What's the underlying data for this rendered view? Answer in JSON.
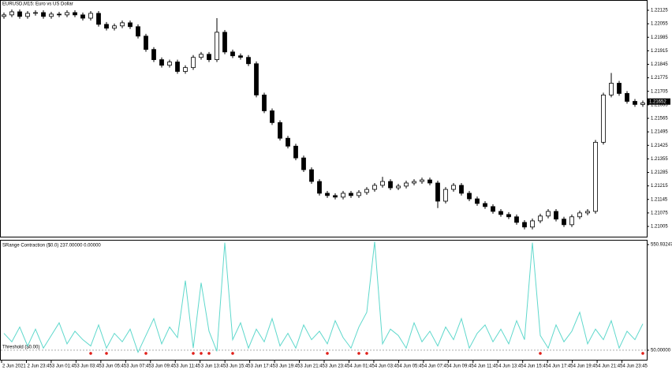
{
  "chart_data": [
    {
      "type": "candlestick",
      "title": "EURUSD,M15:  Euro vs US Dollar",
      "ylim": [
        1.20952,
        1.22174
      ],
      "yticks": [
        1.22125,
        1.22055,
        1.21985,
        1.21915,
        1.21845,
        1.21775,
        1.21705,
        1.21635,
        1.21565,
        1.21495,
        1.21425,
        1.21355,
        1.21285,
        1.21215,
        1.21145,
        1.21075,
        1.21005
      ],
      "current_price": 1.21652,
      "up_color": "#ffffff",
      "down_color": "#000000",
      "outline_color": "#000000",
      "candles": [
        [
          1.22093,
          1.22113,
          1.22081,
          1.22101
        ],
        [
          1.22101,
          1.22129,
          1.22089,
          1.22117
        ],
        [
          1.22117,
          1.22129,
          1.22081,
          1.22093
        ],
        [
          1.22093,
          1.22121,
          1.22081,
          1.22109
        ],
        [
          1.22109,
          1.22125,
          1.22097,
          1.22113
        ],
        [
          1.22113,
          1.22125,
          1.22081,
          1.22093
        ],
        [
          1.22093,
          1.22117,
          1.22081,
          1.22105
        ],
        [
          1.22105,
          1.22117,
          1.22089,
          1.22101
        ],
        [
          1.22101,
          1.22125,
          1.22089,
          1.22113
        ],
        [
          1.22113,
          1.22125,
          1.22089,
          1.22101
        ],
        [
          1.22101,
          1.22113,
          1.22072,
          1.22084
        ],
        [
          1.22084,
          1.22121,
          1.22072,
          1.22109
        ],
        [
          1.22109,
          1.22121,
          1.2204,
          1.22052
        ],
        [
          1.22052,
          1.22064,
          1.2202,
          1.22032
        ],
        [
          1.22032,
          1.22056,
          1.2202,
          1.22044
        ],
        [
          1.22044,
          1.22072,
          1.22032,
          1.2206
        ],
        [
          1.2206,
          1.22072,
          1.22028,
          1.2204
        ],
        [
          1.2204,
          1.22052,
          1.21979,
          1.21991
        ],
        [
          1.21991,
          1.22003,
          1.2191,
          1.21922
        ],
        [
          1.21922,
          1.21934,
          1.21857,
          1.21869
        ],
        [
          1.21869,
          1.21881,
          1.21828,
          1.2184
        ],
        [
          1.2184,
          1.21869,
          1.21828,
          1.21857
        ],
        [
          1.21857,
          1.21869,
          1.21796,
          1.21808
        ],
        [
          1.21808,
          1.2184,
          1.21796,
          1.21828
        ],
        [
          1.21828,
          1.21893,
          1.21816,
          1.21881
        ],
        [
          1.21881,
          1.21909,
          1.21869,
          1.21897
        ],
        [
          1.21897,
          1.21909,
          1.21857,
          1.21869
        ],
        [
          1.21869,
          1.22084,
          1.21857,
          1.22011
        ],
        [
          1.22011,
          1.22023,
          1.21897,
          1.21909
        ],
        [
          1.21909,
          1.21921,
          1.21877,
          1.21889
        ],
        [
          1.21889,
          1.21901,
          1.21869,
          1.21881
        ],
        [
          1.21881,
          1.21893,
          1.21836,
          1.21848
        ],
        [
          1.21848,
          1.2186,
          1.21674,
          1.21686
        ],
        [
          1.21686,
          1.21698,
          1.21592,
          1.21604
        ],
        [
          1.21604,
          1.21616,
          1.21531,
          1.21543
        ],
        [
          1.21543,
          1.21555,
          1.2145,
          1.21462
        ],
        [
          1.21462,
          1.21474,
          1.21409,
          1.21421
        ],
        [
          1.21421,
          1.21433,
          1.21348,
          1.2136
        ],
        [
          1.2136,
          1.21372,
          1.21287,
          1.21299
        ],
        [
          1.21299,
          1.21311,
          1.21226,
          1.21238
        ],
        [
          1.21238,
          1.2125,
          1.21165,
          1.21177
        ],
        [
          1.21177,
          1.21189,
          1.21153,
          1.21165
        ],
        [
          1.21165,
          1.21177,
          1.21145,
          1.21157
        ],
        [
          1.21157,
          1.21189,
          1.21145,
          1.21177
        ],
        [
          1.21177,
          1.21189,
          1.21153,
          1.21165
        ],
        [
          1.21165,
          1.21193,
          1.21153,
          1.21181
        ],
        [
          1.21181,
          1.21209,
          1.21169,
          1.21197
        ],
        [
          1.21197,
          1.2123,
          1.21185,
          1.21218
        ],
        [
          1.21218,
          1.21262,
          1.21206,
          1.21238
        ],
        [
          1.21238,
          1.2125,
          1.21193,
          1.21205
        ],
        [
          1.21205,
          1.21226,
          1.21193,
          1.21214
        ],
        [
          1.21214,
          1.21242,
          1.21202,
          1.2123
        ],
        [
          1.2123,
          1.2125,
          1.21218,
          1.21238
        ],
        [
          1.21238,
          1.21258,
          1.21226,
          1.21246
        ],
        [
          1.21246,
          1.21258,
          1.21218,
          1.2123
        ],
        [
          1.2123,
          1.21242,
          1.211,
          1.21136
        ],
        [
          1.21136,
          1.21209,
          1.21124,
          1.21197
        ],
        [
          1.21197,
          1.2123,
          1.21185,
          1.21218
        ],
        [
          1.21218,
          1.2123,
          1.21165,
          1.21177
        ],
        [
          1.21177,
          1.21189,
          1.21136,
          1.21148
        ],
        [
          1.21148,
          1.2116,
          1.21112,
          1.21124
        ],
        [
          1.21124,
          1.21136,
          1.21096,
          1.21108
        ],
        [
          1.21108,
          1.2112,
          1.21071,
          1.21083
        ],
        [
          1.21083,
          1.21095,
          1.21055,
          1.21067
        ],
        [
          1.21067,
          1.21079,
          1.21043,
          1.21055
        ],
        [
          1.21055,
          1.21067,
          1.21014,
          1.21026
        ],
        [
          1.21026,
          1.21038,
          1.2099,
          1.21002
        ],
        [
          1.21002,
          1.21046,
          1.2099,
          1.21034
        ],
        [
          1.21034,
          1.21071,
          1.21022,
          1.21059
        ],
        [
          1.21059,
          1.21095,
          1.21047,
          1.21083
        ],
        [
          1.21083,
          1.21095,
          1.21031,
          1.21043
        ],
        [
          1.21043,
          1.21055,
          1.21002,
          1.21014
        ],
        [
          1.21014,
          1.21067,
          1.21002,
          1.21055
        ],
        [
          1.21055,
          1.21087,
          1.21043,
          1.21075
        ],
        [
          1.21075,
          1.21095,
          1.21063,
          1.21083
        ],
        [
          1.21083,
          1.21453,
          1.21071,
          1.21441
        ],
        [
          1.21441,
          1.21698,
          1.21429,
          1.21686
        ],
        [
          1.21686,
          1.218,
          1.21674,
          1.21747
        ],
        [
          1.21747,
          1.21759,
          1.21682,
          1.21694
        ],
        [
          1.21694,
          1.21706,
          1.21641,
          1.21653
        ],
        [
          1.21653,
          1.21665,
          1.21625,
          1.21637
        ],
        [
          1.21637,
          1.21657,
          1.21625,
          1.21645
        ]
      ]
    },
    {
      "type": "line",
      "title": "SRange Contraction ($0.0) 237.00000 0.00000",
      "color": "#5fd8cc",
      "signal_color": "#e0201a",
      "ylim": [
        4.8,
        569.8
      ],
      "yticks": [
        {
          "value": 50,
          "label": "50.00000"
        },
        550.93247
      ],
      "threshold": 50,
      "threshold_label": "Threshold ($0.00)",
      "values": [
        130,
        90,
        160,
        70,
        150,
        60,
        120,
        180,
        80,
        140,
        100,
        70,
        170,
        60,
        130,
        90,
        150,
        40,
        120,
        200,
        80,
        160,
        110,
        380,
        60,
        370,
        140,
        45,
        560,
        100,
        180,
        60,
        150,
        90,
        200,
        70,
        130,
        60,
        170,
        100,
        140,
        80,
        190,
        110,
        60,
        160,
        230,
        565,
        80,
        150,
        120,
        60,
        180,
        90,
        140,
        70,
        160,
        100,
        200,
        60,
        130,
        170,
        90,
        150,
        80,
        190,
        100,
        560,
        120,
        60,
        170,
        90,
        140,
        230,
        80,
        150,
        100,
        190,
        60,
        140,
        100,
        175
      ],
      "signals": [
        null,
        null,
        null,
        null,
        null,
        null,
        null,
        null,
        null,
        null,
        null,
        35,
        null,
        35,
        null,
        null,
        null,
        null,
        35,
        null,
        null,
        null,
        null,
        null,
        35,
        35,
        35,
        null,
        null,
        35,
        null,
        null,
        null,
        null,
        null,
        null,
        null,
        null,
        null,
        null,
        null,
        35,
        null,
        null,
        null,
        35,
        35,
        null,
        null,
        null,
        null,
        null,
        null,
        null,
        null,
        null,
        null,
        null,
        null,
        null,
        null,
        null,
        null,
        null,
        null,
        null,
        null,
        null,
        35,
        null,
        null,
        null,
        null,
        null,
        null,
        null,
        null,
        null,
        null,
        null,
        null,
        35
      ],
      "time_labels": [
        "2 Jun 2021",
        "2 Jun 23:45",
        "3 Jun 01:45",
        "3 Jun 03:45",
        "3 Jun 05:45",
        "3 Jun 07:45",
        "3 Jun 09:45",
        "3 Jun 11:45",
        "3 Jun 13:45",
        "3 Jun 15:45",
        "3 Jun 17:45",
        "3 Jun 19:45",
        "3 Jun 21:45",
        "3 Jun 23:45",
        "4 Jun 01:45",
        "4 Jun 03:45",
        "4 Jun 05:45",
        "4 Jun 07:45",
        "4 Jun 09:45",
        "4 Jun 11:45",
        "4 Jun 13:45",
        "4 Jun 15:45",
        "4 Jun 17:45",
        "4 Jun 19:45",
        "4 Jun 21:45",
        "4 Jun 23:45"
      ]
    }
  ]
}
